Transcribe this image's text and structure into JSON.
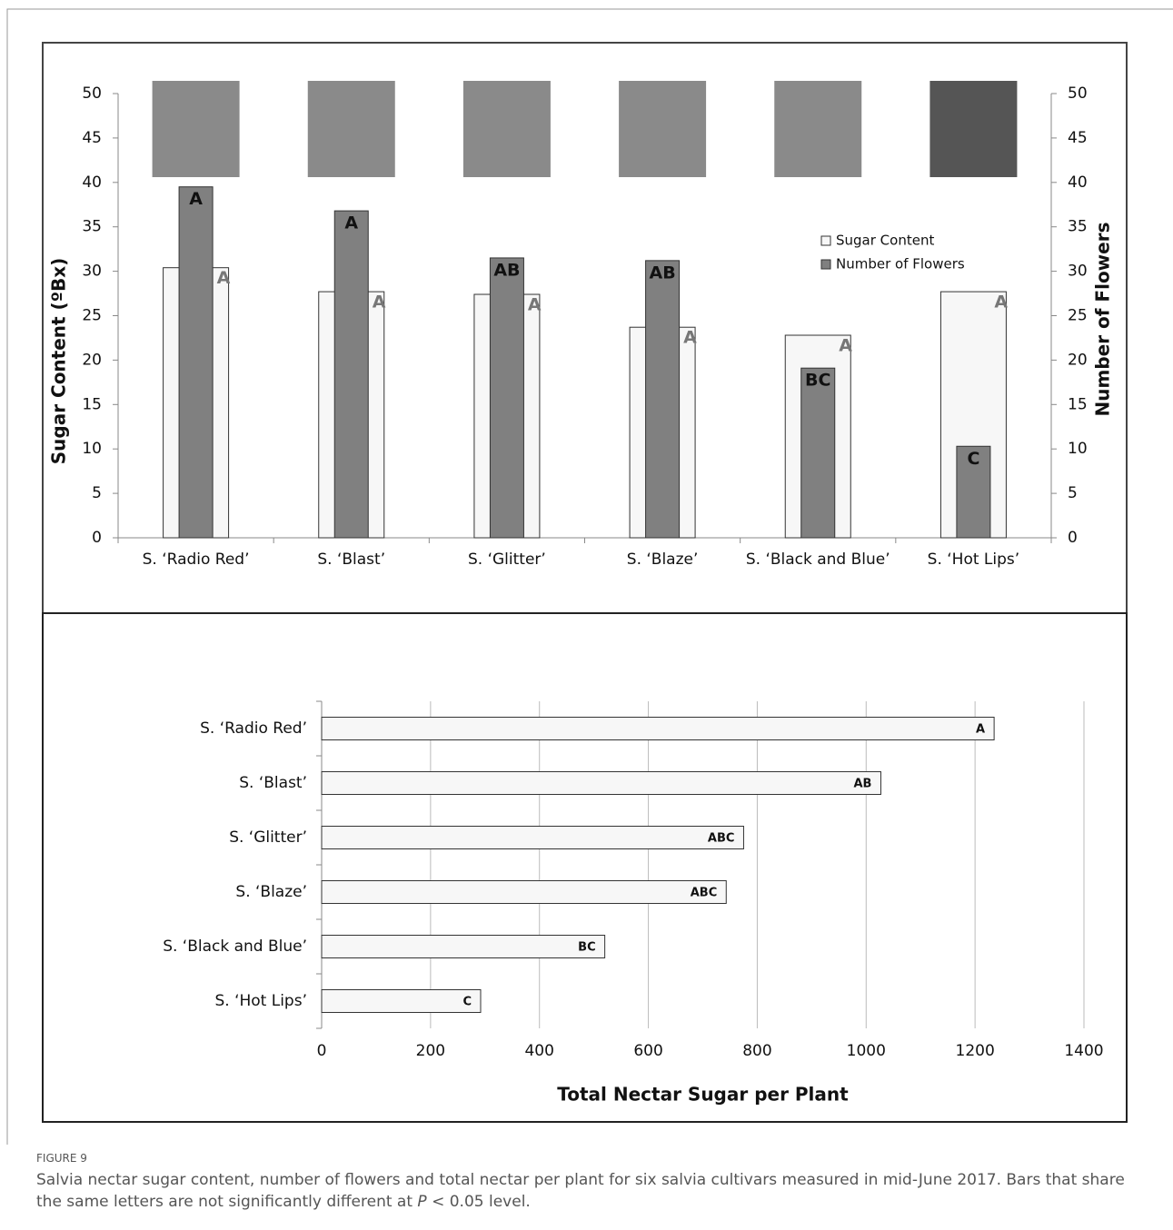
{
  "chart_data": [
    {
      "type": "bar",
      "categories": [
        "S. ‘Radio Red’",
        "S. ‘Blast’",
        "S. ‘Glitter’",
        "S. ‘Blaze’",
        "S. ‘Black and Blue’",
        "S. ‘Hot Lips’"
      ],
      "series": [
        {
          "name": "Sugar Content",
          "color": "#f7f7f7",
          "values": [
            30.4,
            27.7,
            27.4,
            23.7,
            22.8,
            27.7
          ],
          "letters": [
            "A",
            "A",
            "A",
            "A",
            "A",
            "A"
          ]
        },
        {
          "name": "Number of Flowers",
          "color": "#808080",
          "axis": "y2",
          "values": [
            39.5,
            36.8,
            31.5,
            31.2,
            19.1,
            10.3
          ],
          "letters": [
            "A",
            "A",
            "AB",
            "AB",
            "BC",
            "C"
          ]
        }
      ],
      "ylabel": "Sugar Content (ºBx)",
      "y2label": "Number of Flowers",
      "ylim": [
        0,
        50
      ],
      "yticks": [
        0,
        5,
        10,
        15,
        20,
        25,
        30,
        35,
        40,
        45,
        50
      ],
      "y2lim": [
        0,
        50
      ],
      "y2ticks": [
        0,
        5,
        10,
        15,
        20,
        25,
        30,
        35,
        40,
        45,
        50
      ],
      "grid": false,
      "legend": "upper right"
    },
    {
      "type": "bar",
      "orientation": "horizontal",
      "categories": [
        "S. ‘Radio Red’",
        "S. ‘Blast’",
        "S. ‘Glitter’",
        "S. ‘Blaze’",
        "S. ‘Black and Blue’",
        "S. ‘Hot Lips’"
      ],
      "values": [
        1235,
        1027,
        775,
        743,
        520,
        292
      ],
      "letters": [
        "A",
        "AB",
        "ABC",
        "ABC",
        "BC",
        "C"
      ],
      "color": "#f7f7f7",
      "xlabel": "Total Nectar Sugar per Plant",
      "xlim": [
        0,
        1400
      ],
      "xticks": [
        0,
        200,
        400,
        600,
        800,
        1000,
        1200,
        1400
      ],
      "grid": true
    }
  ],
  "caption": {
    "label": "FIGURE 9",
    "text": "Salvia nectar sugar content, number of flowers and total nectar per plant for six salvia cultivars measured in mid-June 2017. Bars that share the same letters are not significantly different at ",
    "italic": "P",
    "end": " < 0.05 level."
  }
}
